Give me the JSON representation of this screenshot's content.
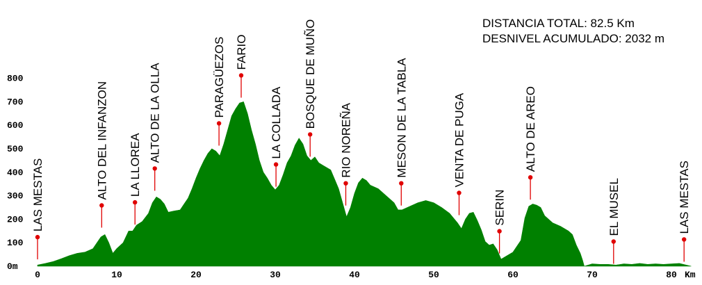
{
  "summary": {
    "distance": "DISTANCIA TOTAL: 82.5 Km",
    "elevation_gain": "DESNIVEL ACUMULADO: 2032 m"
  },
  "chart_data": {
    "type": "area",
    "title": "",
    "xlabel": "Km",
    "ylabel": "",
    "xlim": [
      0,
      82.5
    ],
    "ylim": [
      0,
      800
    ],
    "x_unit_label": "Km",
    "y_unit_label": "m",
    "x_ticks": [
      0,
      10,
      20,
      30,
      40,
      50,
      60,
      70,
      80
    ],
    "y_ticks": [
      0,
      100,
      200,
      300,
      400,
      500,
      600,
      700,
      800
    ],
    "fill_color": "#008000",
    "marker_color": "#e00000",
    "profile": [
      [
        0,
        5
      ],
      [
        1,
        12
      ],
      [
        2,
        20
      ],
      [
        3,
        32
      ],
      [
        4,
        45
      ],
      [
        5,
        55
      ],
      [
        6,
        60
      ],
      [
        7,
        75
      ],
      [
        7.5,
        100
      ],
      [
        8,
        125
      ],
      [
        8.5,
        135
      ],
      [
        9,
        100
      ],
      [
        9.5,
        55
      ],
      [
        10,
        75
      ],
      [
        10.8,
        100
      ],
      [
        11.5,
        150
      ],
      [
        12,
        150
      ],
      [
        12.5,
        175
      ],
      [
        13.2,
        190
      ],
      [
        14,
        225
      ],
      [
        14.5,
        270
      ],
      [
        15,
        295
      ],
      [
        15.5,
        285
      ],
      [
        16,
        265
      ],
      [
        16.5,
        230
      ],
      [
        17.2,
        235
      ],
      [
        18,
        240
      ],
      [
        18.5,
        265
      ],
      [
        19,
        290
      ],
      [
        19.5,
        330
      ],
      [
        20,
        375
      ],
      [
        20.5,
        415
      ],
      [
        21,
        450
      ],
      [
        21.5,
        480
      ],
      [
        22,
        500
      ],
      [
        22.5,
        490
      ],
      [
        23,
        470
      ],
      [
        23.5,
        520
      ],
      [
        24,
        580
      ],
      [
        24.5,
        640
      ],
      [
        25,
        670
      ],
      [
        25.5,
        695
      ],
      [
        26,
        700
      ],
      [
        26.5,
        650
      ],
      [
        27,
        580
      ],
      [
        27.5,
        520
      ],
      [
        28,
        450
      ],
      [
        28.5,
        400
      ],
      [
        29,
        375
      ],
      [
        29.5,
        345
      ],
      [
        30,
        325
      ],
      [
        30.5,
        345
      ],
      [
        31,
        390
      ],
      [
        31.5,
        440
      ],
      [
        32,
        470
      ],
      [
        32.5,
        515
      ],
      [
        33,
        545
      ],
      [
        33.5,
        520
      ],
      [
        34,
        470
      ],
      [
        34.5,
        450
      ],
      [
        35,
        465
      ],
      [
        35.5,
        440
      ],
      [
        36,
        430
      ],
      [
        37,
        410
      ],
      [
        37.5,
        370
      ],
      [
        38,
        330
      ],
      [
        38.5,
        270
      ],
      [
        39,
        210
      ],
      [
        39.5,
        250
      ],
      [
        40,
        310
      ],
      [
        40.5,
        355
      ],
      [
        41,
        375
      ],
      [
        41.5,
        365
      ],
      [
        42,
        345
      ],
      [
        43,
        330
      ],
      [
        44,
        300
      ],
      [
        45,
        270
      ],
      [
        45.5,
        240
      ],
      [
        46,
        240
      ],
      [
        47,
        255
      ],
      [
        48,
        270
      ],
      [
        49,
        280
      ],
      [
        50,
        270
      ],
      [
        51,
        250
      ],
      [
        52,
        225
      ],
      [
        53,
        185
      ],
      [
        53.5,
        160
      ],
      [
        54,
        200
      ],
      [
        54.5,
        225
      ],
      [
        55,
        230
      ],
      [
        55.5,
        195
      ],
      [
        56,
        155
      ],
      [
        56.5,
        105
      ],
      [
        57,
        90
      ],
      [
        57.5,
        95
      ],
      [
        58,
        70
      ],
      [
        58.5,
        30
      ],
      [
        59,
        40
      ],
      [
        60,
        60
      ],
      [
        61,
        110
      ],
      [
        61.5,
        205
      ],
      [
        62,
        255
      ],
      [
        62.5,
        265
      ],
      [
        63,
        260
      ],
      [
        63.5,
        250
      ],
      [
        64,
        215
      ],
      [
        65,
        185
      ],
      [
        66,
        170
      ],
      [
        67,
        150
      ],
      [
        67.5,
        135
      ],
      [
        68,
        90
      ],
      [
        68.5,
        55
      ],
      [
        68.8,
        25
      ],
      [
        69,
        0
      ],
      [
        70,
        10
      ],
      [
        71,
        8
      ],
      [
        72,
        8
      ],
      [
        73,
        5
      ],
      [
        74,
        10
      ],
      [
        75,
        8
      ],
      [
        76,
        12
      ],
      [
        77,
        8
      ],
      [
        78,
        10
      ],
      [
        79,
        8
      ],
      [
        80,
        10
      ],
      [
        81,
        12
      ],
      [
        82.5,
        0
      ]
    ],
    "waypoints": [
      {
        "name": "LAS MESTAS",
        "km": 0,
        "elev": 124
      },
      {
        "name": "ALTO DEL INFANZON",
        "km": 8.1,
        "elev": 259
      },
      {
        "name": "LA LLOREA",
        "km": 12.3,
        "elev": 272
      },
      {
        "name": "ALTO DE LA OLLA",
        "km": 14.8,
        "elev": 416
      },
      {
        "name": "PARAGÜEZOS",
        "km": 22.9,
        "elev": 608
      },
      {
        "name": "FARIO",
        "km": 25.7,
        "elev": 812
      },
      {
        "name": "LA COLLADA",
        "km": 30.1,
        "elev": 433
      },
      {
        "name": "BOSQUE DE MUÑO",
        "km": 34.4,
        "elev": 561
      },
      {
        "name": "RIO NOREÑA",
        "km": 38.9,
        "elev": 353
      },
      {
        "name": "MESON DE LA TABLA",
        "km": 45.9,
        "elev": 353
      },
      {
        "name": "VENTA DE PUGA",
        "km": 53.2,
        "elev": 312
      },
      {
        "name": "SERIN",
        "km": 58.3,
        "elev": 149
      },
      {
        "name": "ALTO DE AREO",
        "km": 62.2,
        "elev": 378
      },
      {
        "name": "EL MUSEL",
        "km": 72.7,
        "elev": 105
      },
      {
        "name": "LAS MESTAS",
        "km": 81.6,
        "elev": 114
      }
    ]
  }
}
